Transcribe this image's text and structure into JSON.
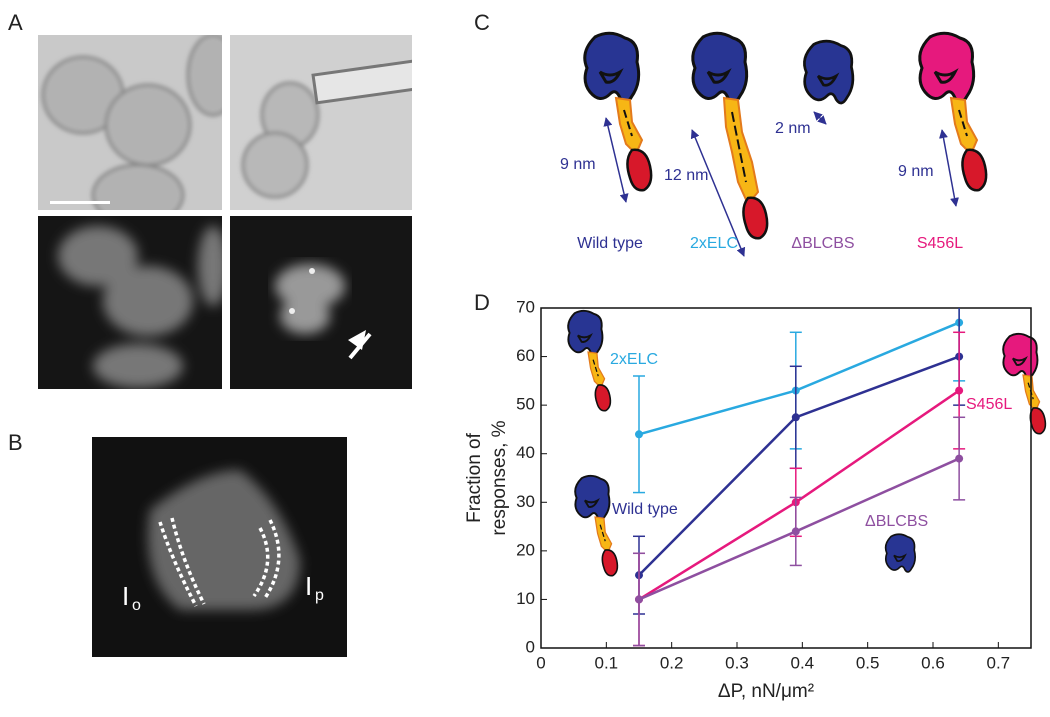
{
  "panels": {
    "a": "A",
    "b": "B",
    "c": "C",
    "d": "D"
  },
  "panel_b": {
    "io": {
      "text": "I",
      "sub": "o"
    },
    "ip": {
      "text": "I",
      "sub": "p"
    }
  },
  "panel_c": {
    "constructs": [
      {
        "name": "Wild type",
        "length": "9 nm"
      },
      {
        "name": "2xELC",
        "length": "12 nm"
      },
      {
        "name": "ΔBLCBS",
        "length": "2 nm"
      },
      {
        "name": "S456L",
        "length": "9 nm"
      }
    ]
  },
  "chart_data": {
    "type": "line",
    "ylabel": [
      "Fraction of",
      "responses, %"
    ],
    "xlabel": "ΔP, nN/μm²",
    "x": [
      0.15,
      0.39,
      0.64
    ],
    "series": [
      {
        "name": "2xELC",
        "color": "#29a9e0",
        "values": [
          44,
          53,
          67
        ],
        "errors": [
          12,
          12,
          12
        ]
      },
      {
        "name": "Wild type",
        "color": "#2e3192",
        "values": [
          15,
          47.5,
          60
        ],
        "errors": [
          8,
          10.5,
          10
        ]
      },
      {
        "name": "S456L",
        "color": "#e6197d",
        "values": [
          10,
          30,
          53
        ],
        "errors": [
          9.5,
          7,
          12
        ]
      },
      {
        "name": "ΔBLCBS",
        "color": "#8e4fa0",
        "values": [
          10,
          24,
          39
        ],
        "errors": [
          9.5,
          7,
          8.5
        ]
      }
    ],
    "xlim": [
      0,
      0.75
    ],
    "xticks": [
      0,
      0.1,
      0.2,
      0.3,
      0.4,
      0.5,
      0.6,
      0.7
    ],
    "ylim": [
      0,
      70
    ],
    "yticks": [
      0,
      10,
      20,
      30,
      40,
      50,
      60,
      70
    ]
  }
}
